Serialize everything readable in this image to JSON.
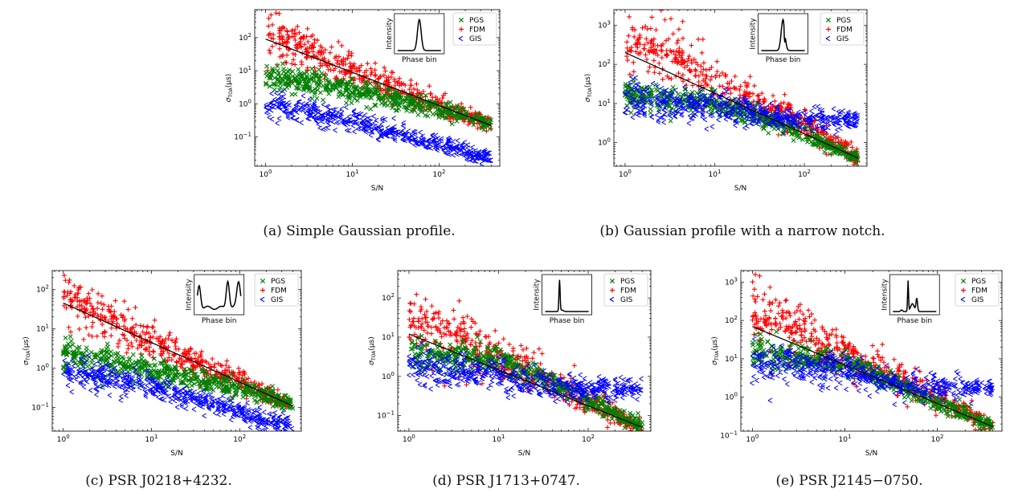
{
  "colors": {
    "PGS": "#008000",
    "FDM": "#ff0000",
    "GIS": "#0000ff",
    "fit": "#000000"
  },
  "legend": [
    "PGS",
    "FDM",
    "GIS"
  ],
  "inset": {
    "xlabel": "Phase bin",
    "ylabel": "Intensity"
  },
  "captions": [
    "(a) Simple Gaussian profile.",
    "(b) Gaussian profile with a narrow notch.",
    "(c) PSR J0218+4232.",
    "(d) PSR J1713+0747.",
    "(e) PSR J2145−0750."
  ],
  "chart_data": [
    {
      "type": "scatter",
      "title": "",
      "xlabel": "S/N",
      "ylabel": "σTOA(μs)",
      "xscale": "log",
      "yscale": "log",
      "xlim": [
        0.75,
        500
      ],
      "ylim": [
        0.013,
        700
      ],
      "xticks": [
        "10^0",
        "10^1",
        "10^2"
      ],
      "yticks": [
        "10^-1",
        "10^0",
        "10^1",
        "10^2"
      ],
      "profile": "gaussian",
      "series": [
        {
          "name": "FDM",
          "marker": "+",
          "trend": [
            [
              1,
              90
            ],
            [
              400,
              0.22
            ]
          ],
          "spread_dex": 0.35,
          "ceiling_snr": 0
        },
        {
          "name": "PGS",
          "marker": "x",
          "trend": [
            [
              1,
              6
            ],
            [
              3,
              4.5
            ],
            [
              10,
              2.5
            ],
            [
              100,
              0.7
            ],
            [
              400,
              0.25
            ]
          ],
          "spread_dex": 0.22,
          "ceiling_snr": 0
        },
        {
          "name": "GIS",
          "marker": "tri_left",
          "trend": [
            [
              1,
              1.0
            ],
            [
              10,
              0.3
            ],
            [
              100,
              0.06
            ],
            [
              200,
              0.04
            ],
            [
              250,
              0.025
            ],
            [
              400,
              0.025
            ]
          ],
          "spread_dex": 0.2,
          "ceiling_snr": 0
        }
      ],
      "fit_line": [
        [
          1,
          90
        ],
        [
          400,
          0.22
        ]
      ]
    },
    {
      "type": "scatter",
      "title": "",
      "xlabel": "S/N",
      "ylabel": "σTOA(μs)",
      "xscale": "log",
      "yscale": "log",
      "xlim": [
        0.75,
        500
      ],
      "ylim": [
        0.25,
        2500
      ],
      "xticks": [
        "10^0",
        "10^1",
        "10^2"
      ],
      "yticks": [
        "10^0",
        "10^1",
        "10^2",
        "10^3"
      ],
      "profile": "notch",
      "series": [
        {
          "name": "FDM",
          "marker": "+",
          "trend": [
            [
              1,
              200
            ],
            [
              3,
              150
            ],
            [
              10,
              35
            ],
            [
              100,
              3
            ],
            [
              400,
              0.4
            ]
          ],
          "spread_dex": 0.35,
          "ceiling_snr": 0
        },
        {
          "name": "PGS",
          "marker": "x",
          "trend": [
            [
              1,
              18
            ],
            [
              10,
              10
            ],
            [
              40,
              4
            ],
            [
              400,
              0.4
            ]
          ],
          "spread_dex": 0.2,
          "ceiling_snr": 0
        },
        {
          "name": "GIS",
          "marker": "tri_left",
          "trend": [
            [
              1,
              12
            ],
            [
              10,
              9
            ],
            [
              40,
              5
            ],
            [
              80,
              4
            ],
            [
              400,
              3.8
            ]
          ],
          "spread_dex": 0.25,
          "ceiling_snr": 0
        }
      ],
      "fit_line": [
        [
          1,
          200
        ],
        [
          400,
          0.4
        ]
      ]
    },
    {
      "type": "scatter",
      "title": "",
      "xlabel": "S/N",
      "ylabel": "σTOA(μs)",
      "xscale": "log",
      "yscale": "log",
      "xlim": [
        0.75,
        500
      ],
      "ylim": [
        0.025,
        300
      ],
      "xticks": [
        "10^0",
        "10^1",
        "10^2"
      ],
      "yticks": [
        "10^-1",
        "10^0",
        "10^1",
        "10^2"
      ],
      "profile": "J0218",
      "series": [
        {
          "name": "FDM",
          "marker": "+",
          "trend": [
            [
              1,
              45
            ],
            [
              400,
              0.11
            ]
          ],
          "spread_dex": 0.3,
          "ceiling_snr": 0
        },
        {
          "name": "PGS",
          "marker": "x",
          "trend": [
            [
              1,
              2.2
            ],
            [
              10,
              0.9
            ],
            [
              100,
              0.3
            ],
            [
              400,
              0.12
            ]
          ],
          "spread_dex": 0.2,
          "ceiling_snr": 0
        },
        {
          "name": "GIS",
          "marker": "tri_left",
          "trend": [
            [
              1,
              0.8
            ],
            [
              10,
              0.35
            ],
            [
              100,
              0.08
            ],
            [
              200,
              0.045
            ],
            [
              400,
              0.04
            ]
          ],
          "spread_dex": 0.2,
          "ceiling_snr": 0
        }
      ],
      "fit_line": [
        [
          1,
          45
        ],
        [
          400,
          0.11
        ]
      ]
    },
    {
      "type": "scatter",
      "title": "",
      "xlabel": "S/N",
      "ylabel": "σTOA(μs)",
      "xscale": "log",
      "yscale": "log",
      "xlim": [
        0.75,
        500
      ],
      "ylim": [
        0.04,
        500
      ],
      "xticks": [
        "10^0",
        "10^1",
        "10^2"
      ],
      "yticks": [
        "10^-1",
        "10^0",
        "10^1",
        "10^2"
      ],
      "profile": "J1713",
      "series": [
        {
          "name": "FDM",
          "marker": "+",
          "trend": [
            [
              1,
              20
            ],
            [
              10,
              3
            ],
            [
              100,
              0.25
            ],
            [
              400,
              0.05
            ]
          ],
          "spread_dex": 0.35,
          "ceiling_snr": 0
        },
        {
          "name": "PGS",
          "marker": "x",
          "trend": [
            [
              1,
              4
            ],
            [
              10,
              2.5
            ],
            [
              30,
              1
            ],
            [
              400,
              0.05
            ]
          ],
          "spread_dex": 0.2,
          "ceiling_snr": 0
        },
        {
          "name": "GIS",
          "marker": "tri_left",
          "trend": [
            [
              1,
              2
            ],
            [
              10,
              1
            ],
            [
              40,
              0.5
            ],
            [
              400,
              0.45
            ]
          ],
          "spread_dex": 0.25,
          "ceiling_snr": 0
        }
      ],
      "fit_line": [
        [
          1,
          12
        ],
        [
          400,
          0.05
        ]
      ]
    },
    {
      "type": "scatter",
      "title": "",
      "xlabel": "S/N",
      "ylabel": "σTOA(μs)",
      "xscale": "log",
      "yscale": "log",
      "xlim": [
        0.75,
        500
      ],
      "ylim": [
        0.13,
        2000
      ],
      "xticks": [
        "10^0",
        "10^1",
        "10^2"
      ],
      "yticks": [
        "10^-1",
        "10^0",
        "10^1",
        "10^2",
        "10^3"
      ],
      "profile": "J2145",
      "series": [
        {
          "name": "FDM",
          "marker": "+",
          "trend": [
            [
              1,
              100
            ],
            [
              10,
              15
            ],
            [
              100,
              1
            ],
            [
              400,
              0.17
            ]
          ],
          "spread_dex": 0.35,
          "ceiling_snr": 0
        },
        {
          "name": "PGS",
          "marker": "x",
          "trend": [
            [
              1,
              15
            ],
            [
              10,
              8
            ],
            [
              40,
              2
            ],
            [
              400,
              0.17
            ]
          ],
          "spread_dex": 0.2,
          "ceiling_snr": 0
        },
        {
          "name": "GIS",
          "marker": "tri_left",
          "trend": [
            [
              1,
              8
            ],
            [
              10,
              5
            ],
            [
              40,
              2
            ],
            [
              400,
              1.6
            ]
          ],
          "spread_dex": 0.25,
          "ceiling_snr": 0
        }
      ],
      "fit_line": [
        [
          1,
          70
        ],
        [
          400,
          0.17
        ]
      ]
    }
  ]
}
